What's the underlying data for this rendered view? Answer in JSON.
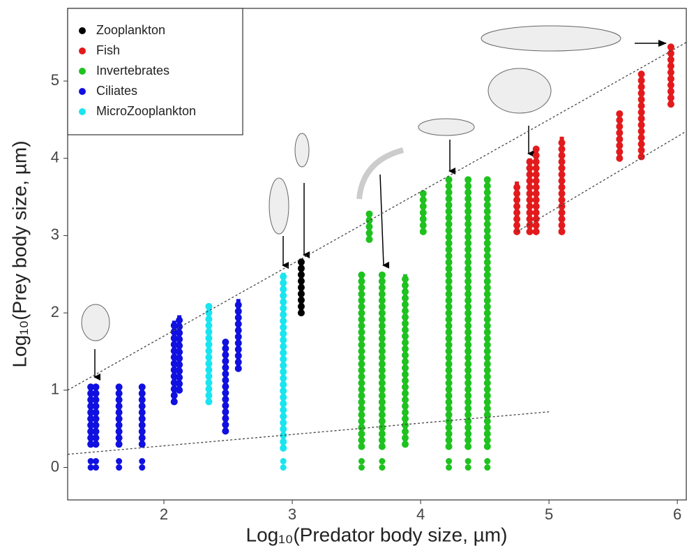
{
  "chart_data": {
    "type": "scatter",
    "x_label": "Log₁₀(Predator body size, µm)",
    "y_label": "Log₁₀(Prey body size, µm)",
    "xlim": [
      1.25,
      6.07
    ],
    "ylim": [
      -0.42,
      5.94
    ],
    "xticks": [
      2,
      3,
      4,
      5,
      6
    ],
    "yticks": [
      0,
      1,
      2,
      3,
      4,
      5
    ],
    "legend": "top-left",
    "series": [
      {
        "name": "Zooplankton",
        "color": "#000000",
        "x": [
          3.07
        ],
        "low": [
          2.0
        ],
        "high": [
          2.7
        ],
        "points_x": [],
        "points_y": []
      },
      {
        "name": "Fish",
        "color": "#e31a1c",
        "x": [
          4.75,
          4.85,
          4.9,
          5.1,
          5.55,
          5.72,
          5.95
        ],
        "low": [
          3.05,
          3.05,
          3.05,
          3.05,
          4.0,
          4.02,
          4.7
        ],
        "high": [
          3.7,
          4.0,
          4.15,
          4.28,
          4.58,
          5.1,
          5.45
        ],
        "points_x": [],
        "points_y": []
      },
      {
        "name": "Invertebrates",
        "color": "#1fc21f",
        "x": [
          3.54,
          3.6,
          3.7,
          3.88,
          4.02,
          4.22,
          4.37,
          4.52
        ],
        "low": [
          0.27,
          2.95,
          0.27,
          0.3,
          3.05,
          0.27,
          0.27,
          0.27
        ],
        "high": [
          2.5,
          3.28,
          2.5,
          2.5,
          3.58,
          3.75,
          3.73,
          3.73
        ],
        "points_x": [
          3.54,
          3.7,
          4.22,
          4.37,
          4.52
        ],
        "points_y": [
          0,
          0,
          0,
          0,
          0
        ]
      },
      {
        "name": "Ciliates",
        "color": "#1010e0",
        "x": [
          1.43,
          1.47,
          1.65,
          1.83,
          2.08,
          2.12,
          2.48,
          2.58
        ],
        "low": [
          0.3,
          0.3,
          0.3,
          0.3,
          0.85,
          1.0,
          0.47,
          1.28
        ],
        "high": [
          1.05,
          1.05,
          1.05,
          1.05,
          1.9,
          1.97,
          1.63,
          2.18
        ],
        "points_x": [
          1.43,
          1.47,
          1.65,
          1.83
        ],
        "points_y": [
          0,
          0,
          0,
          0
        ]
      },
      {
        "name": "MicroZooplankton",
        "color": "#19e5f0",
        "x": [
          2.35,
          2.93
        ],
        "low": [
          0.85,
          0.25
        ],
        "high": [
          2.1,
          2.52
        ],
        "points_x": [
          2.93
        ],
        "points_y": [
          0
        ]
      }
    ],
    "trend_lines": [
      {
        "x": [
          1.25,
          6.07
        ],
        "y": [
          1.0,
          5.5
        ]
      },
      {
        "x": [
          1.25,
          5.0
        ],
        "y": [
          0.17,
          0.72
        ]
      },
      {
        "x": [
          4.75,
          6.07
        ],
        "y": [
          3.05,
          4.35
        ]
      }
    ]
  }
}
